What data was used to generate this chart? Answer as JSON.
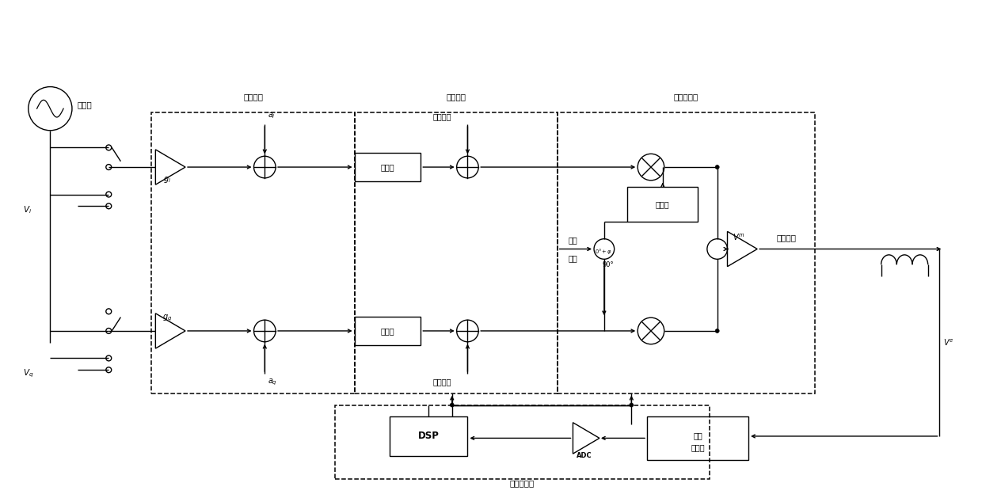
{
  "fig_width": 12.4,
  "fig_height": 6.29,
  "labels": {
    "cal_source": "校准源",
    "trans_channel": "传输通道",
    "comp_circuit": "补偿电路",
    "vec_mod": "矢量调制器",
    "comp_ctrl": "补偿控制器",
    "bias_voltage_top": "偏置电压",
    "bias_voltage_bot": "偏置电压",
    "attenuator_top": "衰减器",
    "attenuator_bot": "衰减器",
    "phase_shifter": "移相器",
    "carrier_input_1": "载波",
    "carrier_input_2": "输入",
    "rf_output": "射频输出",
    "dsp": "DSP",
    "adc": "ADC",
    "envelope_1": "包络",
    "envelope_2": "检测器",
    "vi": "$V_i$",
    "vq": "$V_q$",
    "vm": "$V^m$",
    "ve": "$V^e$",
    "gi": "$g_i$",
    "gq": "$g_q$",
    "ai": "$a_i$",
    "aq": "$a_q$",
    "angle0phi": "$0°+\\varphi$",
    "angle90": "90°"
  }
}
